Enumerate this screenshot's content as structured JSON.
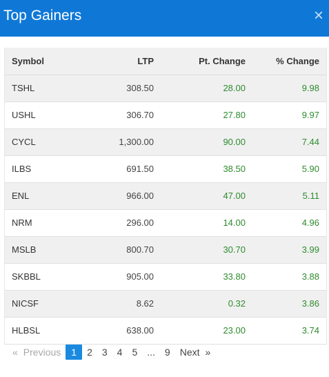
{
  "header": {
    "title": "Top Gainers",
    "close_glyph": "×"
  },
  "table": {
    "columns": [
      "Symbol",
      "LTP",
      "Pt. Change",
      "% Change"
    ],
    "rows": [
      [
        "TSHL",
        "308.50",
        "28.00",
        "9.98"
      ],
      [
        "USHL",
        "306.70",
        "27.80",
        "9.97"
      ],
      [
        "CYCL",
        "1,300.00",
        "90.00",
        "7.44"
      ],
      [
        "ILBS",
        "691.50",
        "38.50",
        "5.90"
      ],
      [
        "ENL",
        "966.00",
        "47.00",
        "5.11"
      ],
      [
        "NRM",
        "296.00",
        "14.00",
        "4.96"
      ],
      [
        "MSLB",
        "800.70",
        "30.70",
        "3.99"
      ],
      [
        "SKBBL",
        "905.00",
        "33.80",
        "3.88"
      ],
      [
        "NICSF",
        "8.62",
        "0.32",
        "3.86"
      ],
      [
        "HLBSL",
        "638.00",
        "23.00",
        "3.74"
      ]
    ]
  },
  "pagination": {
    "prev_arrow": "«",
    "prev_label": "Previous",
    "pages": [
      "1",
      "2",
      "3",
      "4",
      "5",
      "...",
      "9"
    ],
    "active_page": "1",
    "next_label": "Next",
    "next_arrow": "»"
  },
  "colors": {
    "header_bg": "#0f78d7",
    "positive": "#2e8b2e",
    "active_page": "#1a8ae0"
  }
}
